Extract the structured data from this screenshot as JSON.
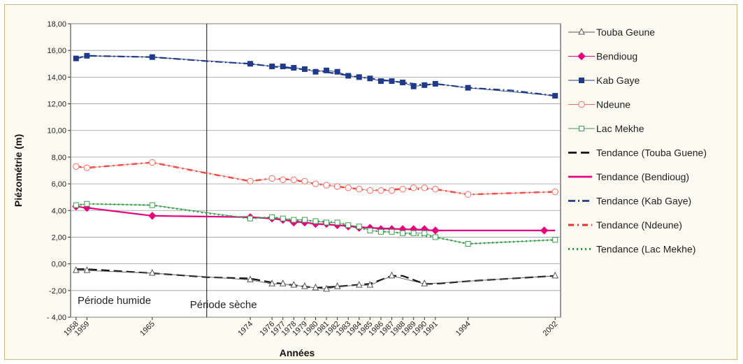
{
  "chart_data": {
    "type": "line",
    "title": "",
    "xlabel": "Années",
    "ylabel": "Piézométrie (m)",
    "ylim": [
      -4,
      18
    ],
    "yticks": [
      "18,00",
      "16,00",
      "14,00",
      "12,00",
      "10,00",
      "8,00",
      "6,00",
      "4,00",
      "2,00",
      "0,00",
      "-2,00",
      "- 4,00"
    ],
    "ytick_values": [
      18,
      16,
      14,
      12,
      10,
      8,
      6,
      4,
      2,
      0,
      -2,
      -4
    ],
    "xticks": [
      "1958",
      "1959",
      "1965",
      "1974",
      "1976",
      "1977",
      "1978",
      "1979",
      "1980",
      "1981",
      "1982",
      "1983",
      "1984",
      "1985",
      "1986",
      "1987",
      "1988",
      "1989",
      "1990",
      "1991",
      "1994",
      "2002"
    ],
    "grid": true,
    "legend_position": "right",
    "annotations": [
      "Période humide",
      "Période sèche"
    ],
    "divider_year": 1970,
    "series": [
      {
        "name": "Touba Geune",
        "color": "#555555",
        "marker": "triangle",
        "x": [
          1958,
          1959,
          1965,
          1974,
          1976,
          1977,
          1978,
          1979,
          1980,
          1981,
          1982,
          1984,
          1985,
          1987,
          1990,
          2002
        ],
        "y": [
          -0.5,
          -0.5,
          -0.7,
          -1.2,
          -1.5,
          -1.5,
          -1.6,
          -1.7,
          -1.8,
          -1.9,
          -1.7,
          -1.6,
          -1.6,
          -0.9,
          -1.5,
          -0.9
        ]
      },
      {
        "name": "Bendioug",
        "color": "#e6007e",
        "marker": "diamond",
        "x": [
          1958,
          1959,
          1965,
          1974,
          1976,
          1977,
          1978,
          1979,
          1980,
          1981,
          1982,
          1983,
          1984,
          1985,
          1986,
          1987,
          1988,
          1989,
          1990,
          1991,
          2001
        ],
        "y": [
          4.3,
          4.2,
          3.6,
          3.5,
          3.4,
          3.3,
          3.1,
          3.1,
          3.0,
          3.0,
          2.9,
          2.8,
          2.7,
          2.7,
          2.6,
          2.6,
          2.6,
          2.6,
          2.6,
          2.5,
          2.5
        ]
      },
      {
        "name": "Kab Gaye",
        "color": "#1f3a8a",
        "marker": "square",
        "x": [
          1958,
          1959,
          1965,
          1974,
          1976,
          1977,
          1978,
          1979,
          1980,
          1981,
          1982,
          1983,
          1984,
          1985,
          1986,
          1987,
          1988,
          1989,
          1990,
          1991,
          1994,
          2002
        ],
        "y": [
          15.4,
          15.6,
          15.5,
          15.0,
          14.8,
          14.8,
          14.7,
          14.6,
          14.4,
          14.5,
          14.4,
          14.1,
          14.0,
          13.9,
          13.7,
          13.7,
          13.6,
          13.3,
          13.4,
          13.5,
          13.2,
          12.6
        ]
      },
      {
        "name": "Ndeune",
        "color": "#ff6a5e",
        "marker": "circle",
        "x": [
          1958,
          1959,
          1965,
          1974,
          1976,
          1977,
          1978,
          1979,
          1980,
          1981,
          1982,
          1983,
          1984,
          1985,
          1986,
          1987,
          1988,
          1989,
          1990,
          1991,
          1994,
          2002
        ],
        "y": [
          7.3,
          7.2,
          7.6,
          6.2,
          6.4,
          6.3,
          6.3,
          6.2,
          6.0,
          5.9,
          5.8,
          5.7,
          5.6,
          5.5,
          5.5,
          5.5,
          5.6,
          5.7,
          5.7,
          5.6,
          5.2,
          5.4
        ]
      },
      {
        "name": "Lac Mekhe",
        "color": "#3a9e4c",
        "marker": "square-open",
        "x": [
          1958,
          1959,
          1965,
          1974,
          1976,
          1977,
          1978,
          1979,
          1980,
          1981,
          1982,
          1983,
          1984,
          1985,
          1986,
          1987,
          1988,
          1989,
          1990,
          1991,
          1994,
          2002
        ],
        "y": [
          4.4,
          4.5,
          4.4,
          3.4,
          3.5,
          3.4,
          3.3,
          3.3,
          3.2,
          3.1,
          3.1,
          2.9,
          2.8,
          2.5,
          2.4,
          2.4,
          2.3,
          2.3,
          2.3,
          2.0,
          1.5,
          1.8
        ]
      }
    ],
    "trends": [
      {
        "name": "Tendance (Touba Guene)",
        "color": "#111111",
        "dash": "long",
        "x": [
          1958,
          1959,
          1965,
          1970,
          1974,
          1976,
          1978,
          1980,
          1982,
          1985,
          1987,
          1988,
          1990,
          1991,
          1994,
          2002
        ],
        "y": [
          -0.4,
          -0.4,
          -0.7,
          -1.0,
          -1.1,
          -1.4,
          -1.6,
          -1.8,
          -1.7,
          -1.5,
          -0.9,
          -0.9,
          -1.5,
          -1.5,
          -1.3,
          -0.9
        ]
      },
      {
        "name": "Tendance (Bendioug)",
        "color": "#e6007e",
        "dash": "solid",
        "x": [
          1958,
          1959,
          1965,
          1974,
          1976,
          1978,
          1980,
          1982,
          1985,
          1988,
          1991,
          2001,
          2002
        ],
        "y": [
          4.3,
          4.2,
          3.6,
          3.5,
          3.4,
          3.2,
          3.0,
          2.9,
          2.7,
          2.6,
          2.5,
          2.5,
          2.5
        ]
      },
      {
        "name": "Tendance (Kab Gaye)",
        "color": "#1f3a8a",
        "dash": "dashdot",
        "x": [
          1958,
          1959,
          1965,
          1970,
          1974,
          1976,
          1980,
          1984,
          1988,
          1990,
          1991,
          1994,
          1998,
          2002
        ],
        "y": [
          15.4,
          15.6,
          15.5,
          15.2,
          15.0,
          14.8,
          14.5,
          14.0,
          13.6,
          13.4,
          13.5,
          13.2,
          13.0,
          12.6
        ]
      },
      {
        "name": "Tendance (Ndeune)",
        "color": "#e8312a",
        "dash": "dashdotbold",
        "x": [
          1958,
          1959,
          1965,
          1970,
          1974,
          1976,
          1978,
          1980,
          1982,
          1985,
          1988,
          1991,
          1994,
          2002
        ],
        "y": [
          7.3,
          7.2,
          7.6,
          6.8,
          6.2,
          6.4,
          6.3,
          6.0,
          5.8,
          5.5,
          5.6,
          5.6,
          5.2,
          5.4
        ]
      },
      {
        "name": "Tendance (Lac Mekhe)",
        "color": "#1e9e3a",
        "dash": "dotted",
        "x": [
          1958,
          1959,
          1965,
          1970,
          1974,
          1976,
          1978,
          1980,
          1982,
          1985,
          1988,
          1991,
          1994,
          2002
        ],
        "y": [
          4.4,
          4.5,
          4.4,
          3.8,
          3.4,
          3.5,
          3.3,
          3.2,
          3.1,
          2.5,
          2.3,
          2.0,
          1.5,
          1.8
        ]
      }
    ]
  }
}
